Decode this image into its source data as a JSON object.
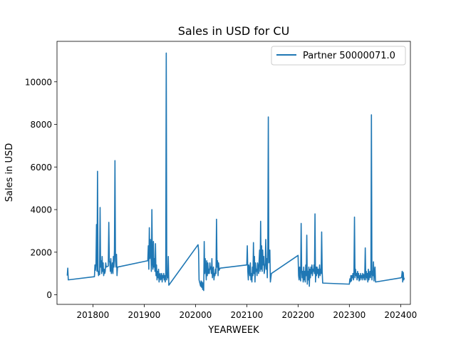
{
  "chart_data": {
    "type": "line",
    "title": "Sales in USD for CU",
    "xlabel": "YEARWEEK",
    "ylabel": "Sales in USD",
    "xlim": [
      201730,
      202419
    ],
    "ylim": [
      -450,
      11900
    ],
    "xticks": [
      201800,
      201900,
      202000,
      202100,
      202200,
      202300,
      202400
    ],
    "xtick_labels": [
      "201800",
      "201900",
      "202000",
      "202100",
      "202200",
      "202300",
      "202400"
    ],
    "yticks": [
      0,
      2000,
      4000,
      6000,
      8000,
      10000
    ],
    "ytick_labels": [
      "0",
      "2000",
      "4000",
      "6000",
      "8000",
      "10000"
    ],
    "grid": false,
    "legend": "top-right",
    "color": "#1f77b4",
    "series": [
      {
        "name": "Partner 50000071.0",
        "points": [
          [
            201750,
            900
          ],
          [
            201751,
            1250
          ],
          [
            201752,
            700
          ],
          [
            201803,
            850
          ],
          [
            201804,
            1400
          ],
          [
            201805,
            1150
          ],
          [
            201806,
            1500
          ],
          [
            201807,
            3300
          ],
          [
            201808,
            1100
          ],
          [
            201809,
            5800
          ],
          [
            201810,
            1200
          ],
          [
            201811,
            900
          ],
          [
            201812,
            1100
          ],
          [
            201813,
            950
          ],
          [
            201814,
            4100
          ],
          [
            201815,
            1300
          ],
          [
            201816,
            1600
          ],
          [
            201817,
            1000
          ],
          [
            201818,
            1800
          ],
          [
            201819,
            1100
          ],
          [
            201820,
            1500
          ],
          [
            201821,
            900
          ],
          [
            201822,
            1200
          ],
          [
            201823,
            1000
          ],
          [
            201824,
            1100
          ],
          [
            201825,
            1500
          ],
          [
            201826,
            1300
          ],
          [
            201830,
            1350
          ],
          [
            201831,
            3400
          ],
          [
            201832,
            1600
          ],
          [
            201833,
            1500
          ],
          [
            201834,
            1100
          ],
          [
            201835,
            1700
          ],
          [
            201836,
            1000
          ],
          [
            201837,
            1200
          ],
          [
            201838,
            1500
          ],
          [
            201839,
            1000
          ],
          [
            201840,
            1800
          ],
          [
            201841,
            1300
          ],
          [
            201842,
            2100
          ],
          [
            201843,
            6300
          ],
          [
            201844,
            1600
          ],
          [
            201845,
            1300
          ],
          [
            201846,
            1900
          ],
          [
            201847,
            900
          ],
          [
            201848,
            1300
          ],
          [
            201907,
            1600
          ],
          [
            201908,
            2300
          ],
          [
            201909,
            1200
          ],
          [
            201910,
            3150
          ],
          [
            201911,
            1700
          ],
          [
            201912,
            2600
          ],
          [
            201913,
            2100
          ],
          [
            201914,
            1100
          ],
          [
            201915,
            4000
          ],
          [
            201916,
            1500
          ],
          [
            201917,
            1200
          ],
          [
            201918,
            2500
          ],
          [
            201919,
            1300
          ],
          [
            201920,
            1700
          ],
          [
            201921,
            1100
          ],
          [
            201922,
            2400
          ],
          [
            201923,
            900
          ],
          [
            201924,
            1400
          ],
          [
            201925,
            700
          ],
          [
            201926,
            1100
          ],
          [
            201927,
            800
          ],
          [
            201928,
            1200
          ],
          [
            201929,
            600
          ],
          [
            201930,
            900
          ],
          [
            201931,
            1000
          ],
          [
            201932,
            700
          ],
          [
            201933,
            800
          ],
          [
            201934,
            1000
          ],
          [
            201935,
            600
          ],
          [
            201936,
            900
          ],
          [
            201937,
            800
          ],
          [
            201938,
            1000
          ],
          [
            201939,
            700
          ],
          [
            201940,
            900
          ],
          [
            201941,
            600
          ],
          [
            201942,
            1000
          ],
          [
            201943,
            11350
          ],
          [
            201944,
            700
          ],
          [
            201945,
            900
          ],
          [
            201946,
            800
          ],
          [
            201947,
            1800
          ],
          [
            201948,
            450
          ],
          [
            202005,
            2350
          ],
          [
            202006,
            2100
          ],
          [
            202007,
            700
          ],
          [
            202008,
            600
          ],
          [
            202009,
            500
          ],
          [
            202010,
            400
          ],
          [
            202011,
            650
          ],
          [
            202012,
            350
          ],
          [
            202013,
            600
          ],
          [
            202014,
            250
          ],
          [
            202015,
            550
          ],
          [
            202016,
            200
          ],
          [
            202017,
            2500
          ],
          [
            202018,
            1000
          ],
          [
            202019,
            1700
          ],
          [
            202020,
            1300
          ],
          [
            202021,
            700
          ],
          [
            202022,
            1600
          ],
          [
            202023,
            900
          ],
          [
            202024,
            1500
          ],
          [
            202025,
            1000
          ],
          [
            202026,
            1200
          ],
          [
            202027,
            1000
          ],
          [
            202028,
            1500
          ],
          [
            202029,
            1200
          ],
          [
            202030,
            1300
          ],
          [
            202031,
            1000
          ],
          [
            202032,
            1700
          ],
          [
            202033,
            800
          ],
          [
            202034,
            1100
          ],
          [
            202035,
            1300
          ],
          [
            202036,
            700
          ],
          [
            202037,
            1000
          ],
          [
            202038,
            900
          ],
          [
            202039,
            1200
          ],
          [
            202040,
            1000
          ],
          [
            202041,
            3550
          ],
          [
            202042,
            1300
          ],
          [
            202043,
            1600
          ],
          [
            202044,
            900
          ],
          [
            202045,
            1500
          ],
          [
            202046,
            1150
          ],
          [
            202047,
            1200
          ],
          [
            202048,
            1250
          ],
          [
            202100,
            1400
          ],
          [
            202101,
            2300
          ],
          [
            202102,
            1100
          ],
          [
            202103,
            700
          ],
          [
            202104,
            1400
          ],
          [
            202105,
            1200
          ],
          [
            202106,
            900
          ],
          [
            202107,
            1500
          ],
          [
            202108,
            700
          ],
          [
            202109,
            1000
          ],
          [
            202110,
            600
          ],
          [
            202111,
            1300
          ],
          [
            202112,
            900
          ],
          [
            202113,
            2450
          ],
          [
            202114,
            1000
          ],
          [
            202115,
            1800
          ],
          [
            202116,
            600
          ],
          [
            202117,
            1500
          ],
          [
            202118,
            1100
          ],
          [
            202119,
            1200
          ],
          [
            202120,
            900
          ],
          [
            202121,
            1500
          ],
          [
            202122,
            1300
          ],
          [
            202123,
            1000
          ],
          [
            202124,
            1600
          ],
          [
            202125,
            2100
          ],
          [
            202126,
            1100
          ],
          [
            202127,
            3450
          ],
          [
            202128,
            1200
          ],
          [
            202129,
            2300
          ],
          [
            202130,
            1100
          ],
          [
            202131,
            2100
          ],
          [
            202132,
            1400
          ],
          [
            202133,
            1800
          ],
          [
            202134,
            1000
          ],
          [
            202135,
            1200
          ],
          [
            202136,
            1500
          ],
          [
            202137,
            2600
          ],
          [
            202138,
            1200
          ],
          [
            202139,
            1700
          ],
          [
            202140,
            800
          ],
          [
            202141,
            2300
          ],
          [
            202142,
            8350
          ],
          [
            202143,
            1500
          ],
          [
            202144,
            1800
          ],
          [
            202145,
            2100
          ],
          [
            202146,
            600
          ],
          [
            202147,
            800
          ],
          [
            202148,
            1000
          ],
          [
            202200,
            1850
          ],
          [
            202201,
            900
          ],
          [
            202202,
            700
          ],
          [
            202203,
            1300
          ],
          [
            202204,
            900
          ],
          [
            202205,
            650
          ],
          [
            202206,
            3350
          ],
          [
            202207,
            1200
          ],
          [
            202208,
            800
          ],
          [
            202209,
            1100
          ],
          [
            202210,
            600
          ],
          [
            202211,
            1300
          ],
          [
            202212,
            700
          ],
          [
            202213,
            1100
          ],
          [
            202214,
            600
          ],
          [
            202215,
            1400
          ],
          [
            202216,
            900
          ],
          [
            202217,
            2800
          ],
          [
            202218,
            500
          ],
          [
            202219,
            1100
          ],
          [
            202220,
            700
          ],
          [
            202221,
            1300
          ],
          [
            202222,
            400
          ],
          [
            202223,
            1200
          ],
          [
            202224,
            800
          ],
          [
            202225,
            1300
          ],
          [
            202226,
            1000
          ],
          [
            202227,
            1400
          ],
          [
            202228,
            900
          ],
          [
            202229,
            1200
          ],
          [
            202230,
            1100
          ],
          [
            202231,
            1400
          ],
          [
            202232,
            1000
          ],
          [
            202233,
            3800
          ],
          [
            202234,
            600
          ],
          [
            202235,
            1300
          ],
          [
            202236,
            900
          ],
          [
            202237,
            1300
          ],
          [
            202238,
            1000
          ],
          [
            202239,
            1200
          ],
          [
            202240,
            800
          ],
          [
            202241,
            1100
          ],
          [
            202242,
            1400
          ],
          [
            202243,
            900
          ],
          [
            202244,
            1200
          ],
          [
            202245,
            1000
          ],
          [
            202246,
            2950
          ],
          [
            202247,
            1100
          ],
          [
            202248,
            550
          ],
          [
            202300,
            500
          ],
          [
            202301,
            750
          ],
          [
            202302,
            600
          ],
          [
            202303,
            900
          ],
          [
            202304,
            650
          ],
          [
            202305,
            900
          ],
          [
            202306,
            800
          ],
          [
            202307,
            1000
          ],
          [
            202308,
            700
          ],
          [
            202309,
            1100
          ],
          [
            202310,
            3650
          ],
          [
            202311,
            800
          ],
          [
            202312,
            1200
          ],
          [
            202313,
            900
          ],
          [
            202314,
            1000
          ],
          [
            202315,
            700
          ],
          [
            202316,
            1100
          ],
          [
            202317,
            800
          ],
          [
            202318,
            1000
          ],
          [
            202319,
            650
          ],
          [
            202320,
            900
          ],
          [
            202321,
            700
          ],
          [
            202322,
            1000
          ],
          [
            202323,
            800
          ],
          [
            202324,
            900
          ],
          [
            202325,
            700
          ],
          [
            202326,
            1000
          ],
          [
            202327,
            800
          ],
          [
            202328,
            950
          ],
          [
            202329,
            700
          ],
          [
            202330,
            900
          ],
          [
            202331,
            2200
          ],
          [
            202332,
            700
          ],
          [
            202333,
            1100
          ],
          [
            202334,
            800
          ],
          [
            202335,
            1000
          ],
          [
            202336,
            600
          ],
          [
            202337,
            1200
          ],
          [
            202338,
            700
          ],
          [
            202339,
            900
          ],
          [
            202340,
            1100
          ],
          [
            202341,
            800
          ],
          [
            202342,
            1000
          ],
          [
            202343,
            8450
          ],
          [
            202344,
            700
          ],
          [
            202345,
            1100
          ],
          [
            202346,
            900
          ],
          [
            202347,
            1550
          ],
          [
            202348,
            650
          ],
          [
            202349,
            1100
          ],
          [
            202350,
            1300
          ],
          [
            202351,
            600
          ],
          [
            202401,
            800
          ],
          [
            202402,
            850
          ],
          [
            202403,
            1100
          ],
          [
            202404,
            600
          ],
          [
            202405,
            1050
          ],
          [
            202406,
            700
          ],
          [
            202407,
            800
          ]
        ]
      }
    ]
  }
}
